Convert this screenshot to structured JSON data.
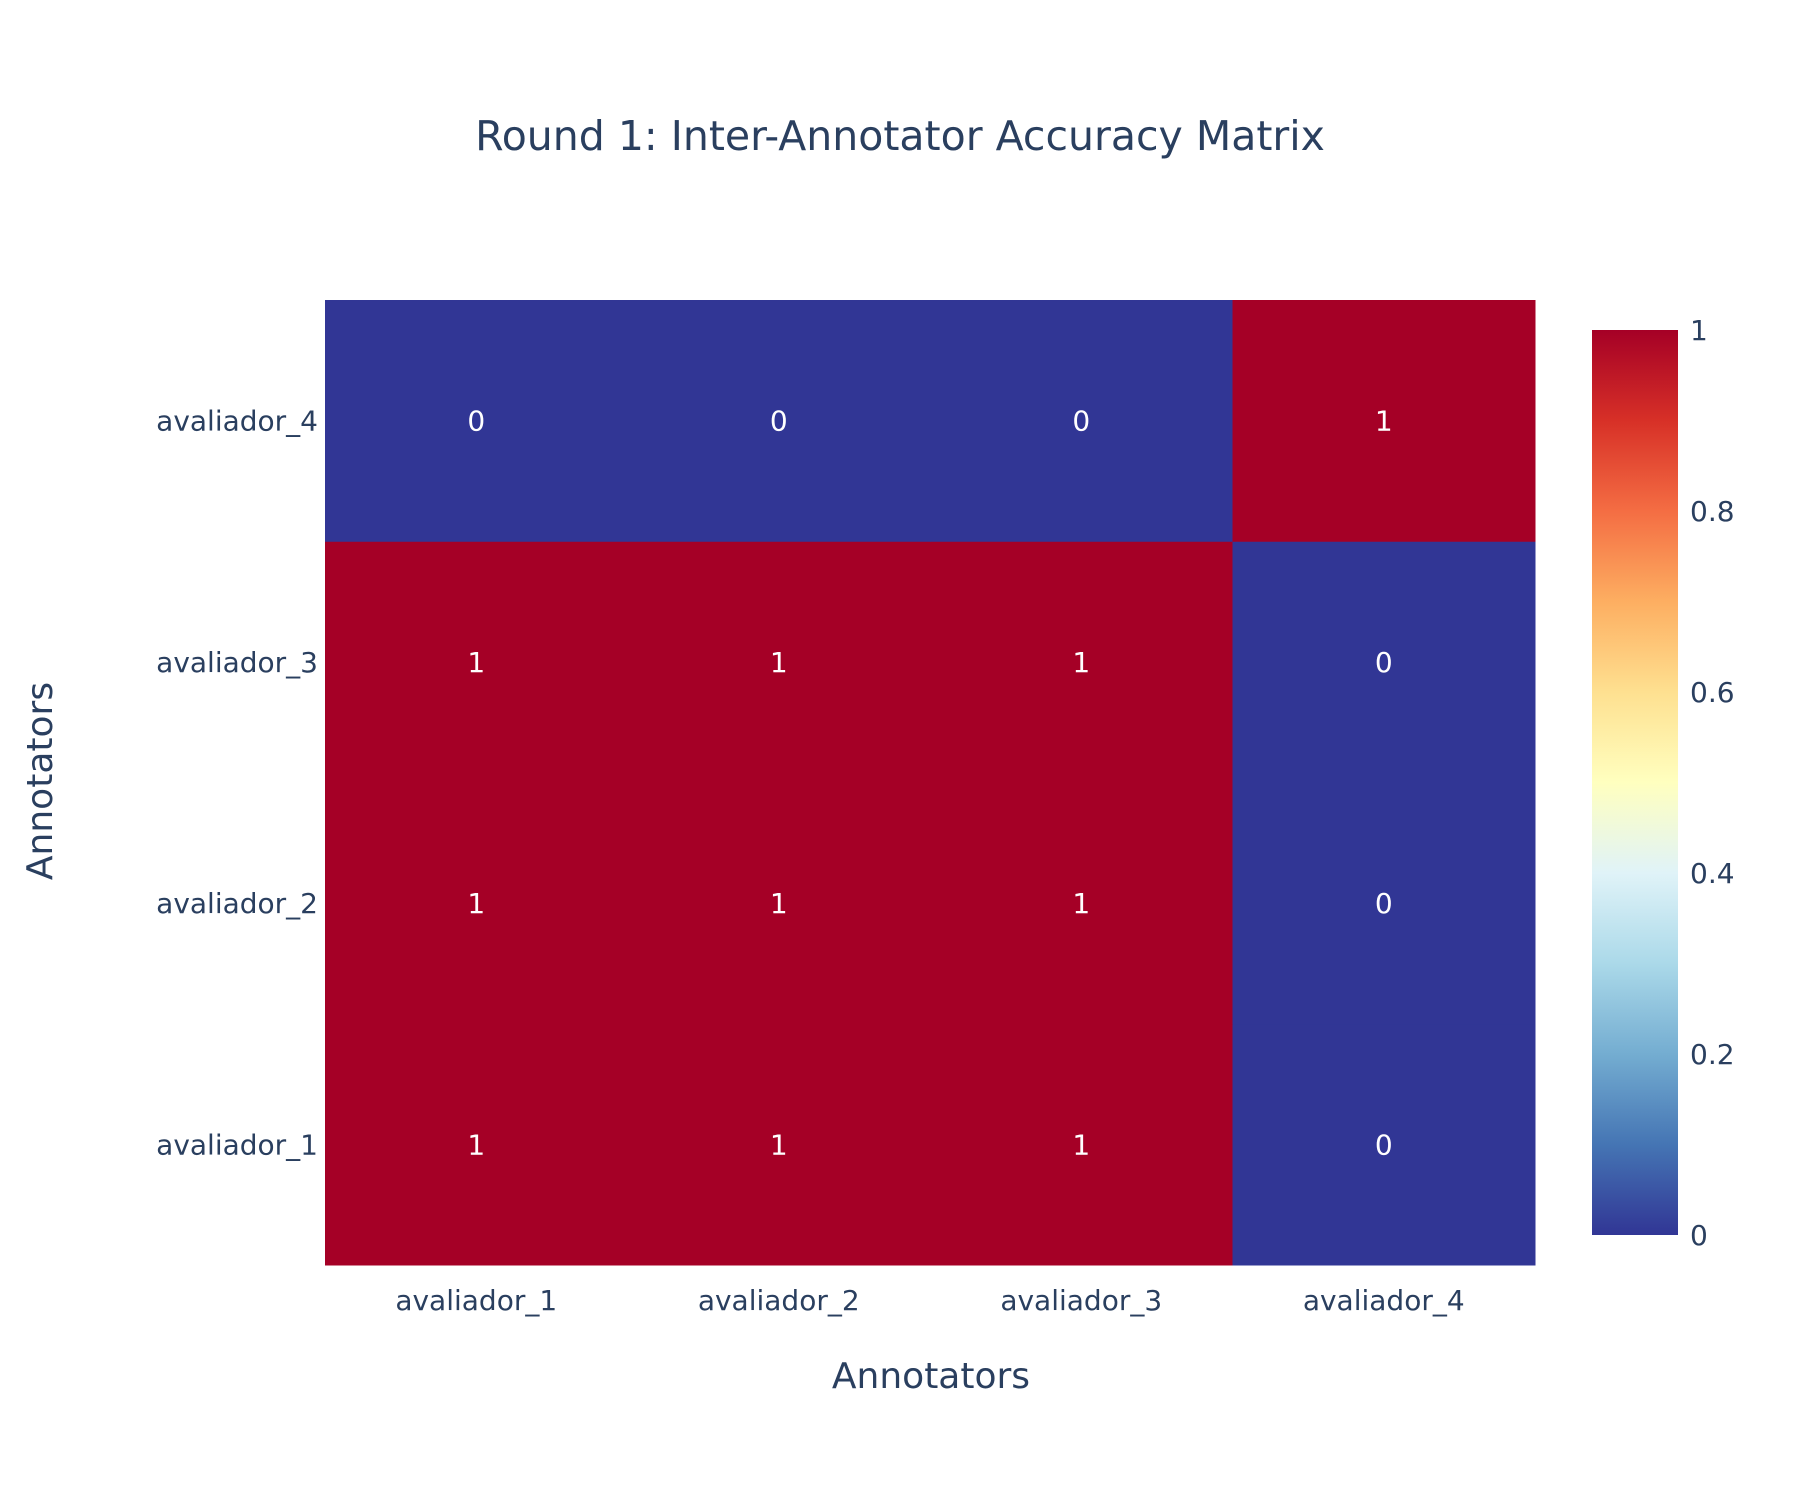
{
  "chart_data": {
    "type": "heatmap",
    "title": "Round 1: Inter-Annotator Accuracy Matrix",
    "xlabel": "Annotators",
    "ylabel": "Annotators",
    "x": [
      "avaliador_1",
      "avaliador_2",
      "avaliador_3",
      "avaliador_4"
    ],
    "y": [
      "avaliador_1",
      "avaliador_2",
      "avaliador_3",
      "avaliador_4"
    ],
    "z": [
      [
        1,
        1,
        1,
        0
      ],
      [
        1,
        1,
        1,
        0
      ],
      [
        1,
        1,
        1,
        0
      ],
      [
        0,
        0,
        0,
        1
      ]
    ],
    "zlim": [
      0,
      1
    ],
    "colorscale": "RdYlBu (reversed)",
    "colorscale_stops": [
      "#313695",
      "#4575b4",
      "#74add1",
      "#abd9e9",
      "#e0f3f8",
      "#ffffbf",
      "#fee090",
      "#fdae61",
      "#f46d43",
      "#d73027",
      "#a50026"
    ],
    "colorbar_ticks": [
      "0",
      "0.2",
      "0.4",
      "0.6",
      "0.8",
      "1"
    ]
  }
}
